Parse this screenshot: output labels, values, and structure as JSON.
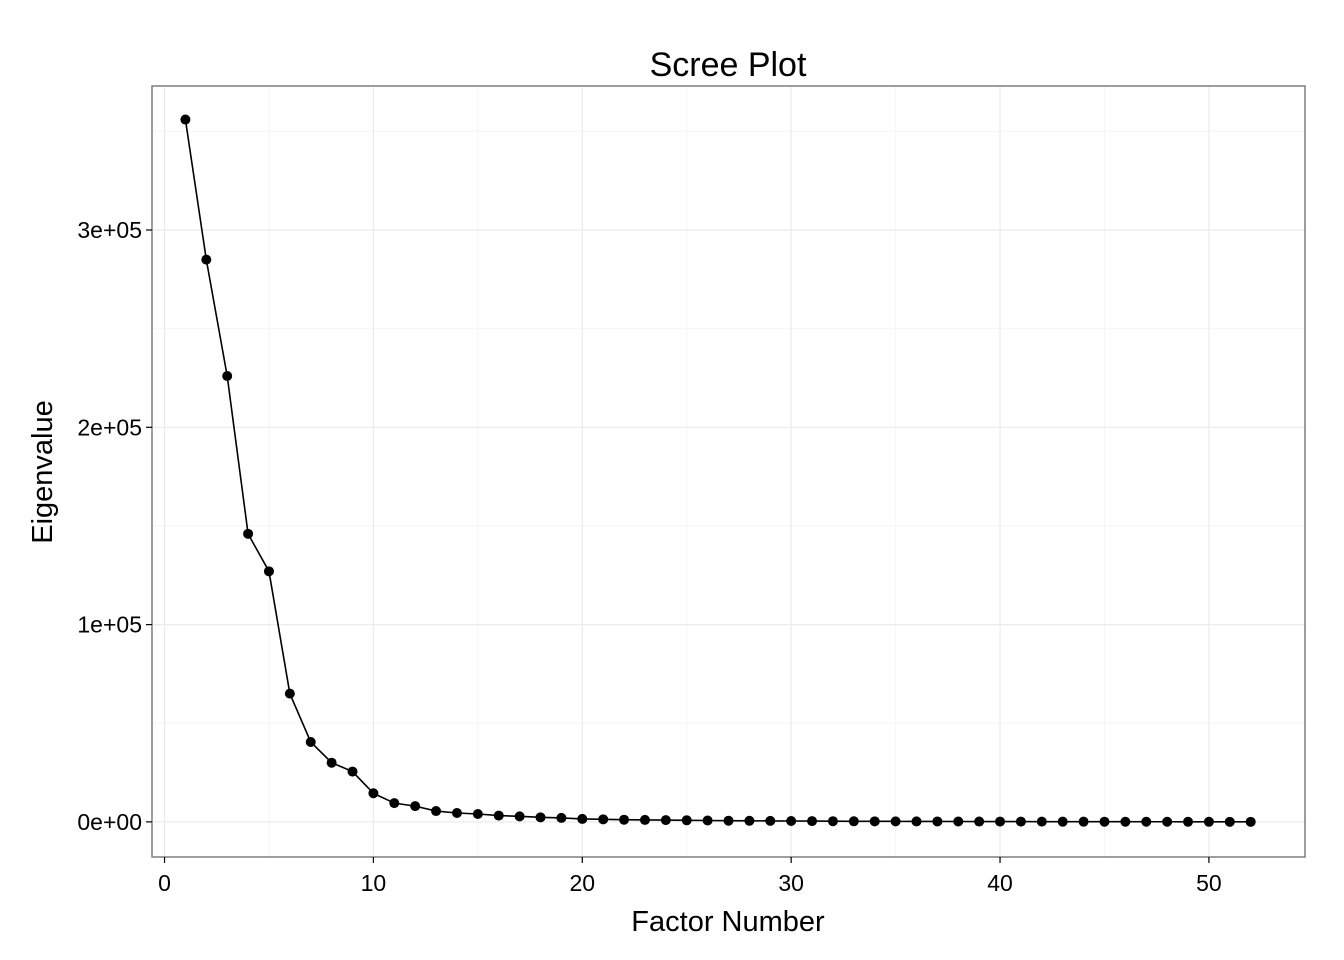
{
  "chart_data": {
    "type": "line",
    "title": "Scree Plot",
    "xlabel": "Factor Number",
    "ylabel": "Eigenvalue",
    "xlim": [
      -0.6,
      54.6
    ],
    "ylim": [
      -17800,
      373000
    ],
    "x_ticks": [
      0,
      10,
      20,
      30,
      40,
      50
    ],
    "x_tick_labels": [
      "0",
      "10",
      "20",
      "30",
      "40",
      "50"
    ],
    "y_ticks": [
      0,
      100000,
      200000,
      300000
    ],
    "y_tick_labels": [
      "0e+00",
      "1e+05",
      "2e+05",
      "3e+05"
    ],
    "grid": true,
    "legend": "none",
    "x": [
      1,
      2,
      3,
      4,
      5,
      6,
      7,
      8,
      9,
      10,
      11,
      12,
      13,
      14,
      15,
      16,
      17,
      18,
      19,
      20,
      21,
      22,
      23,
      24,
      25,
      26,
      27,
      28,
      29,
      30,
      31,
      32,
      33,
      34,
      35,
      36,
      37,
      38,
      39,
      40,
      41,
      42,
      43,
      44,
      45,
      46,
      47,
      48,
      49,
      50,
      51,
      52
    ],
    "series": [
      {
        "values": [
          356000,
          285000,
          226000,
          146000,
          127000,
          65000,
          40500,
          30000,
          25500,
          14500,
          9500,
          8000,
          5500,
          4500,
          4000,
          3200,
          2800,
          2300,
          2000,
          1500,
          1300,
          1100,
          1000,
          900,
          800,
          700,
          600,
          550,
          500,
          450,
          400,
          350,
          300,
          280,
          260,
          240,
          220,
          200,
          180,
          160,
          140,
          120,
          110,
          100,
          90,
          80,
          70,
          60,
          50,
          40,
          30,
          20
        ],
        "color": "#000000"
      }
    ],
    "colors": {
      "background": "#ffffff",
      "panel_border": "#7f7f7f",
      "grid_major": "#ebebeb",
      "grid_minor": "#f5f5f5",
      "points": "#000000"
    }
  }
}
